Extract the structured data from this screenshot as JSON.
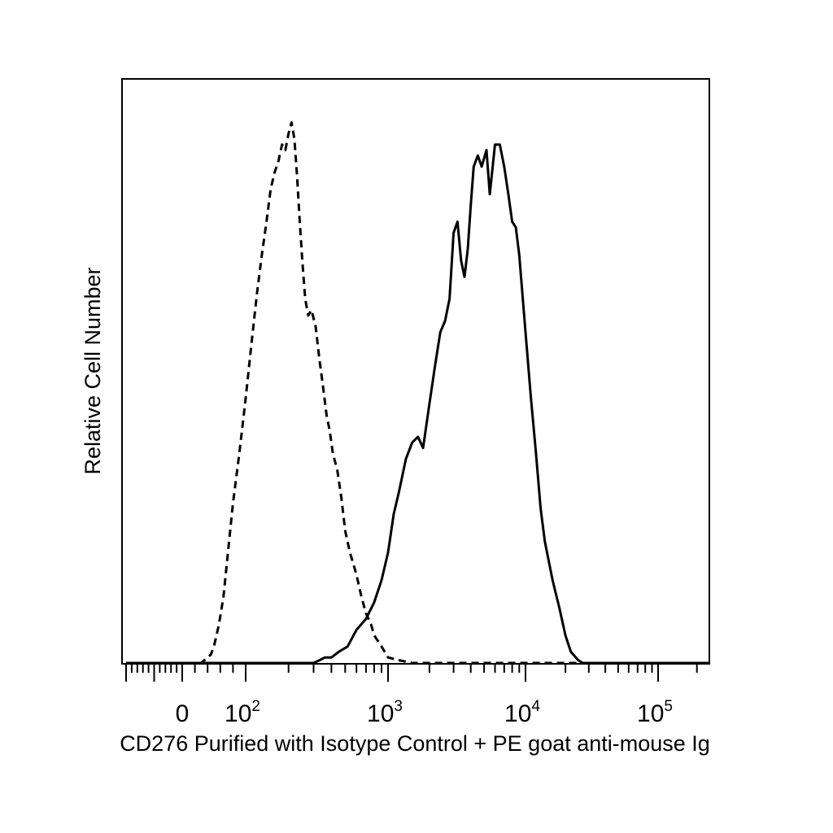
{
  "chart_data": {
    "type": "line",
    "title": "",
    "xlabel": "CD276 Purified with Isotype Control + PE goat anti-mouse Ig",
    "ylabel": "Relative Cell Number",
    "x_scale": "biexponential (linear near 0, log above ~10^2)",
    "xlim": [
      -200,
      250000
    ],
    "ylim": [
      0,
      100
    ],
    "x_tick_labels": [
      {
        "value": 0,
        "base": "0",
        "exp": ""
      },
      {
        "value": 100,
        "base": "10",
        "exp": "2"
      },
      {
        "value": 1000,
        "base": "10",
        "exp": "3"
      },
      {
        "value": 10000,
        "base": "10",
        "exp": "4"
      },
      {
        "value": 100000,
        "base": "10",
        "exp": "5"
      }
    ],
    "grid": false,
    "legend": "none",
    "series": [
      {
        "style": "dashed",
        "color": "#000000",
        "x": [
          -200,
          30,
          40,
          45,
          50,
          58,
          65,
          72,
          80,
          90,
          100,
          110,
          120,
          130,
          140,
          150,
          160,
          170,
          180,
          190,
          200,
          210,
          220,
          230,
          240,
          250,
          262,
          275,
          290,
          310,
          330,
          350,
          370,
          390,
          410,
          440,
          470,
          500,
          540,
          570,
          600,
          650,
          700,
          760,
          800,
          900,
          1000,
          1200,
          1500,
          2000,
          250000
        ],
        "y": [
          0,
          0,
          1,
          1.5,
          3,
          7,
          12,
          20,
          29,
          38,
          48,
          58,
          67,
          74,
          80,
          86,
          89,
          91,
          94,
          93,
          96,
          98,
          95,
          88,
          80,
          73,
          66,
          63,
          64,
          61,
          55,
          50,
          45,
          42,
          38,
          35,
          30,
          24,
          20,
          18,
          16,
          12,
          9,
          7,
          5,
          3,
          1,
          0.5,
          0,
          0,
          0
        ]
      },
      {
        "style": "solid",
        "color": "#000000",
        "x": [
          -200,
          300,
          330,
          360,
          400,
          450,
          520,
          600,
          700,
          800,
          900,
          1000,
          1100,
          1200,
          1350,
          1500,
          1650,
          1800,
          2000,
          2200,
          2400,
          2600,
          2800,
          3000,
          3200,
          3400,
          3600,
          3800,
          4000,
          4200,
          4500,
          4800,
          5200,
          5500,
          6000,
          6500,
          7000,
          7500,
          8000,
          8500,
          9000,
          10000,
          11000,
          12000,
          13000,
          14000,
          16000,
          18000,
          20000,
          22000,
          25000,
          27000,
          30000,
          250000
        ],
        "y": [
          0,
          0,
          0.5,
          1,
          1,
          2,
          3,
          6,
          8,
          11,
          15,
          20,
          27,
          31,
          37,
          40,
          41,
          39,
          47,
          54,
          60,
          62,
          66,
          78,
          80,
          73,
          70,
          75,
          83,
          90,
          92,
          90,
          93,
          85,
          94,
          94,
          90,
          85,
          80,
          79,
          74,
          60,
          48,
          38,
          28,
          22,
          15,
          10,
          5,
          2,
          0.5,
          0,
          0,
          0
        ]
      }
    ]
  }
}
